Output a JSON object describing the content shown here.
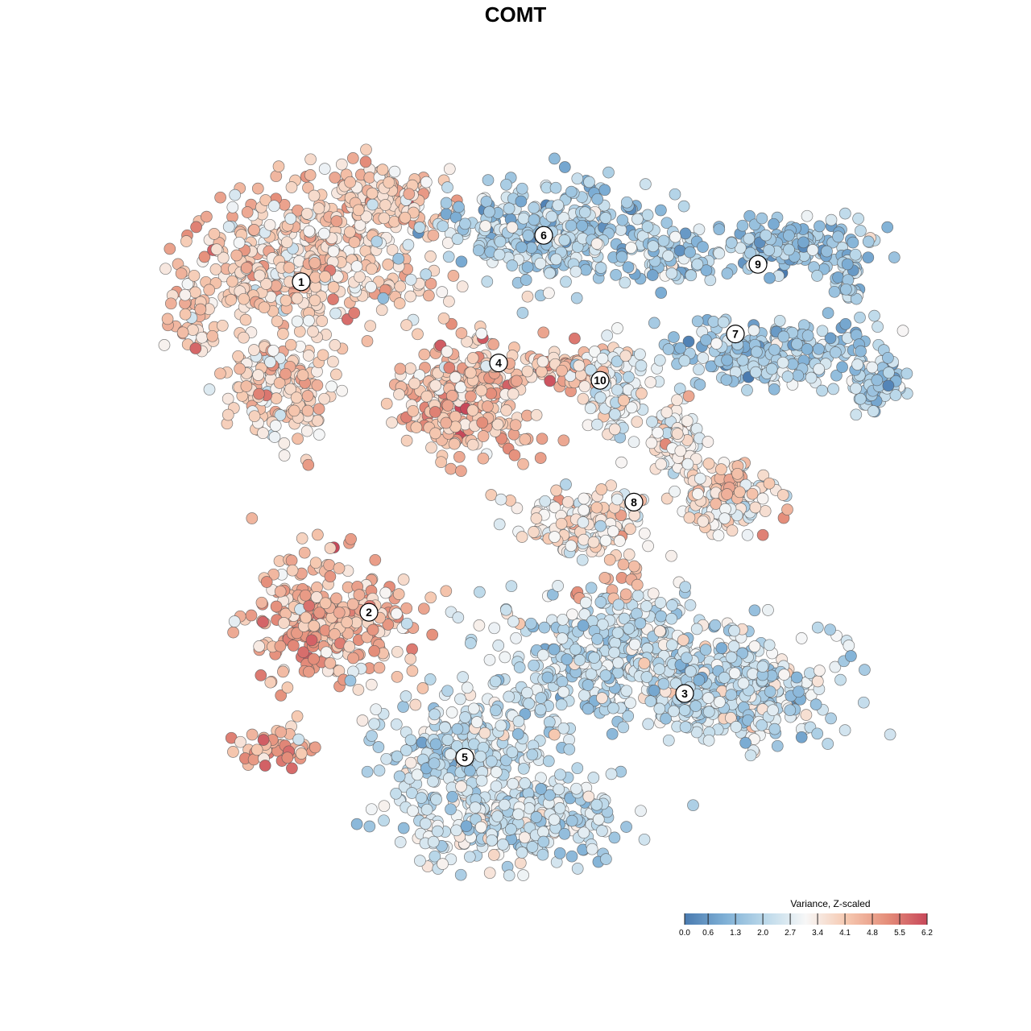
{
  "chart_data": {
    "type": "scatter",
    "title": "COMT",
    "xlabel": "",
    "ylabel": "",
    "grid": false,
    "color_scale": {
      "title": "Variance, Z-scaled",
      "min": 0.0,
      "max": 6.2,
      "ticks": [
        0.0,
        0.6,
        1.3,
        2.0,
        2.7,
        3.4,
        4.1,
        4.8,
        5.5,
        6.2
      ],
      "tick_labels": [
        "0.0",
        "0.6",
        "1.3",
        "2.0",
        "2.7",
        "3.4",
        "4.1",
        "4.8",
        "5.5",
        "6.2"
      ],
      "colors": [
        "#4a7bb0",
        "#7fb0d6",
        "#bcd9ea",
        "#f7f7f7",
        "#f6c9b1",
        "#e58f7b",
        "#c8485a"
      ],
      "legend_position": "bottom-right"
    },
    "clusters": [
      {
        "label": "1",
        "x": -38,
        "y": 41,
        "mean_value": 3.9
      },
      {
        "label": "2",
        "x": -26,
        "y": -16,
        "mean_value": 4.4
      },
      {
        "label": "3",
        "x": 30,
        "y": -30,
        "mean_value": 2.3
      },
      {
        "label": "4",
        "x": -3,
        "y": 27,
        "mean_value": 4.3
      },
      {
        "label": "5",
        "x": -9,
        "y": -41,
        "mean_value": 2.4
      },
      {
        "label": "6",
        "x": 5,
        "y": 49,
        "mean_value": 1.9
      },
      {
        "label": "7",
        "x": 39,
        "y": 32,
        "mean_value": 1.8
      },
      {
        "label": "8",
        "x": 21,
        "y": 3,
        "mean_value": 3.3
      },
      {
        "label": "9",
        "x": 43,
        "y": 44,
        "mean_value": 1.6
      },
      {
        "label": "10",
        "x": 15,
        "y": 24,
        "mean_value": 3.1
      }
    ]
  }
}
